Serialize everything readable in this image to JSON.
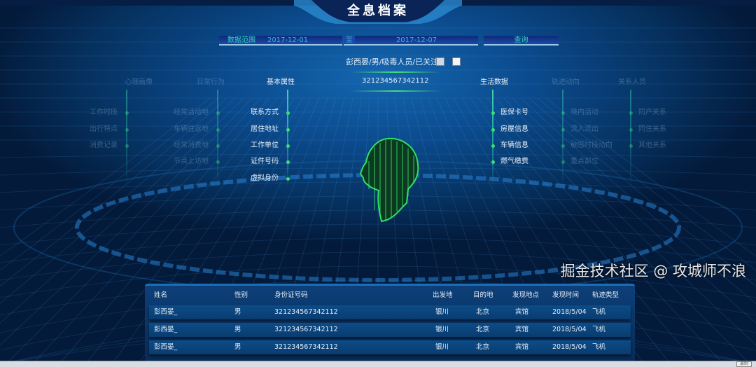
{
  "header": {
    "title": "全息档案"
  },
  "filter": {
    "range_label": "数据范围",
    "start_date": "2017-12-01",
    "separator": "至",
    "end_date": "2017-12-07",
    "query_label": "查询"
  },
  "person": {
    "summary": "彭西晏/男/吸毒人员/已关注",
    "id_number": "321234567342112",
    "icons": [
      "id-card-icon",
      "photo-icon"
    ]
  },
  "categories": {
    "left_far": {
      "title": "心理画像",
      "items": [
        "工作时段",
        "出行特点",
        "消费记录"
      ]
    },
    "daily": {
      "title": "日常行为",
      "items": [
        "经常活动地",
        "车辆往返地",
        "经常消费地",
        "节点上访地"
      ]
    },
    "basic": {
      "title": "基本属性",
      "items": [
        "联系方式",
        "居住地址",
        "工作单位",
        "证件号码",
        "虚拟身份"
      ]
    },
    "life": {
      "title": "生活数据",
      "items": [
        "医保卡号",
        "房屋信息",
        "车辆信息",
        "燃气缴费"
      ]
    },
    "track": {
      "title": "轨迹动向",
      "items": [
        "境内活动",
        "流入流出",
        "敏感时段动向",
        "重点部位"
      ]
    },
    "relation": {
      "title": "关系人员",
      "items": [
        "同户关系",
        "同住关系",
        "其他关系"
      ]
    }
  },
  "table": {
    "headers": [
      "姓名",
      "性别",
      "身份证号码",
      "出发地",
      "目的地",
      "发现地点",
      "发现时间",
      "轨迹类型"
    ],
    "rows": [
      [
        "彭西晏_",
        "男",
        "321234567342112",
        "银川",
        "北京",
        "宾馆",
        "2018/5/04",
        "飞机"
      ],
      [
        "彭西晏_",
        "男",
        "321234567342112",
        "银川",
        "北京",
        "宾馆",
        "2018/5/04",
        "飞机"
      ],
      [
        "彭西晏_",
        "男",
        "321234567342112",
        "银川",
        "北京",
        "宾馆",
        "2018/5/04",
        "飞机"
      ]
    ]
  },
  "watermark": "掘金技术社区 @ 攻城师不浪",
  "scrollbar": {
    "button_label": "录制"
  },
  "colors": {
    "accent_green": "#3ce070",
    "accent_teal": "#2fd6c0",
    "background": "#0b4a8c"
  }
}
